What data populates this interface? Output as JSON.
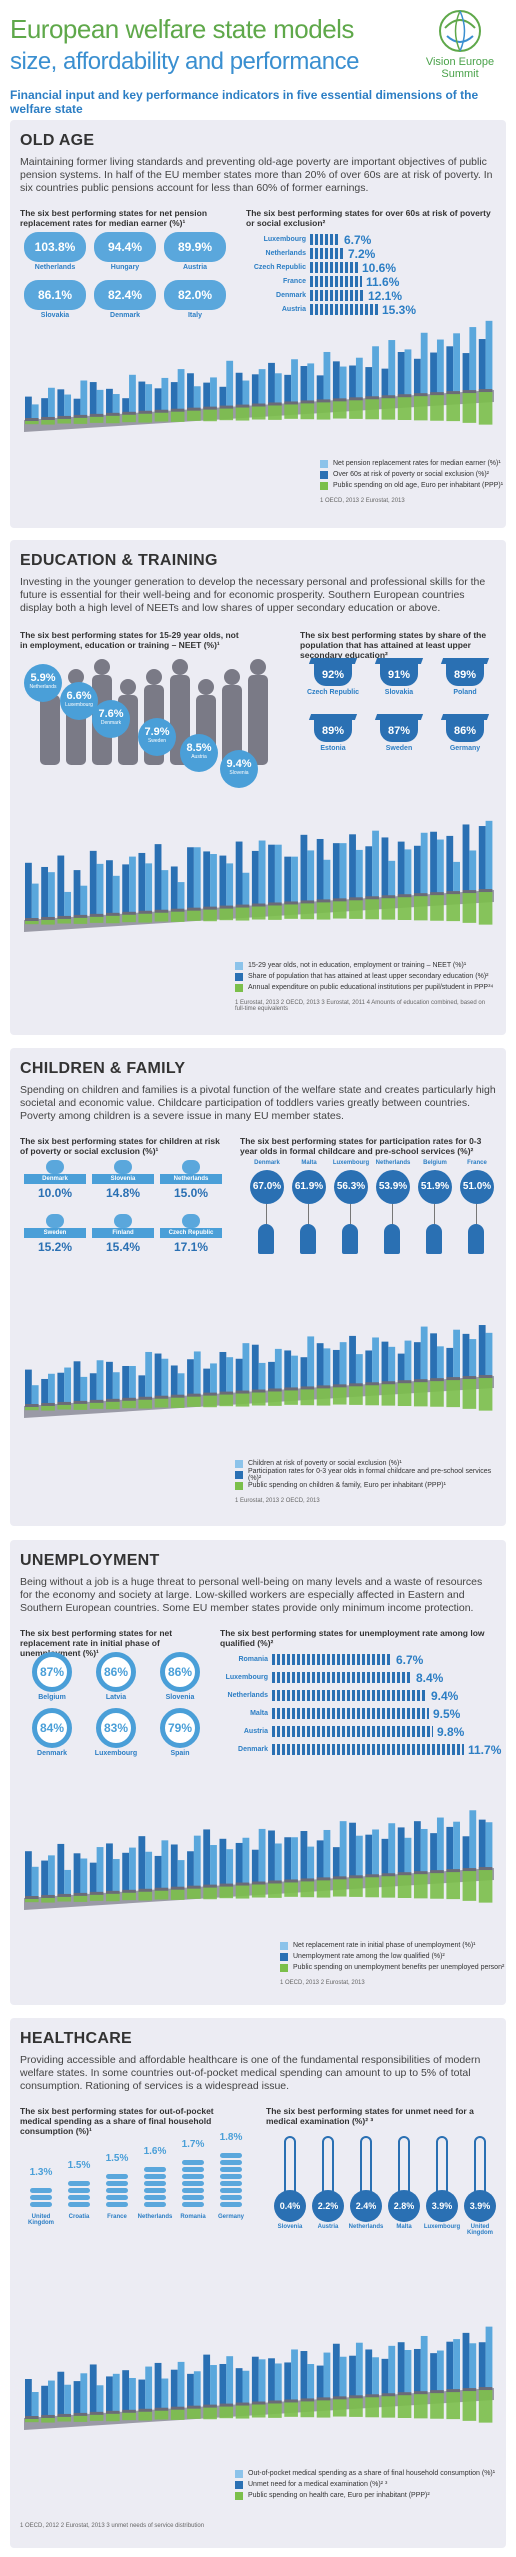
{
  "header": {
    "title": "European welfare state models",
    "subtitle": "size, affordability and performance",
    "brand": "Vision Europe Summit",
    "strap": "Financial input and key performance indicators in five essential dimensions of the welfare state"
  },
  "colors": {
    "dark_blue": "#2a70b3",
    "mid_blue": "#4a9fd8",
    "light_blue": "#8cc3ea",
    "green": "#7bbf4a",
    "panel": "#ececf3"
  },
  "old_age": {
    "title": "OLD AGE",
    "intro": "Maintaining former living standards and preventing old-age poverty are important objectives of public pension systems. In half of the EU member states more than 20% of over 60s are at risk of poverty. In six countries public pensions account for less than 60% of former earnings.",
    "left_head": "The six best performing states for net pension replacement rates for median earner (%)¹",
    "left_items": [
      {
        "value": "103.8%",
        "country": "Netherlands"
      },
      {
        "value": "94.4%",
        "country": "Hungary"
      },
      {
        "value": "89.9%",
        "country": "Austria"
      },
      {
        "value": "86.1%",
        "country": "Slovakia"
      },
      {
        "value": "82.4%",
        "country": "Denmark"
      },
      {
        "value": "82.0%",
        "country": "Italy"
      }
    ],
    "right_head": "The six best performing states for over 60s at risk of poverty or social exclusion²",
    "right_items": [
      {
        "country": "Luxembourg",
        "value": "6.7%"
      },
      {
        "country": "Netherlands",
        "value": "7.2%"
      },
      {
        "country": "Czech Republic",
        "value": "10.6%"
      },
      {
        "country": "France",
        "value": "11.6%"
      },
      {
        "country": "Denmark",
        "value": "12.1%"
      },
      {
        "country": "Austria",
        "value": "15.3%"
      }
    ],
    "legend": [
      "Net pension replacement rates for median earner (%)¹",
      "Over 60s at risk of poverty or social exclusion (%)²",
      "Public spending on old age, Euro per inhabitant (PPP)¹"
    ],
    "footnote": "1 OECD, 2013    2 Eurostat, 2013"
  },
  "education": {
    "title": "EDUCATION & TRAINING",
    "intro": "Investing in the younger generation to develop the necessary personal and professional skills for the future is essential for their well-being and for economic prosperity. Southern European countries display both a high level of NEETs and low shares of upper secondary education or above.",
    "left_head": "The six best performing states for 15-29 year olds, not in employment, education or training – NEET (%)¹",
    "left_items": [
      {
        "value": "5.9%",
        "country": "Netherlands"
      },
      {
        "value": "6.6%",
        "country": "Luxembourg"
      },
      {
        "value": "7.6%",
        "country": "Denmark"
      },
      {
        "value": "7.9%",
        "country": "Sweden"
      },
      {
        "value": "8.5%",
        "country": "Austria"
      },
      {
        "value": "9.4%",
        "country": "Slovenia"
      }
    ],
    "right_head": "The six best performing states by share of the population that has attained at least upper secondary education²",
    "right_items": [
      {
        "value": "92%",
        "country": "Czech Republic"
      },
      {
        "value": "91%",
        "country": "Slovakia"
      },
      {
        "value": "89%",
        "country": "Poland"
      },
      {
        "value": "89%",
        "country": "Estonia"
      },
      {
        "value": "87%",
        "country": "Sweden"
      },
      {
        "value": "86%",
        "country": "Germany"
      }
    ],
    "legend": [
      "15-29 year olds, not in education, employment or training – NEET (%)¹",
      "Share of population that has attained at least upper secondary education (%)²",
      "Annual expenditure on public educational institutions per pupil/student in PPP³⁴"
    ],
    "footnote": "1 Eurostat, 2013    2 OECD, 2013    3 Eurostat, 2011    4 Amounts of education combined, based on full-time equivalents"
  },
  "children": {
    "title": "CHILDREN & FAMILY",
    "intro": "Spending on children and families is a pivotal function of the welfare state and creates particularly high societal and economic value. Childcare participation of toddlers varies greatly between countries. Poverty among children is a severe issue in many EU member states.",
    "left_head": "The six best performing states for children at risk of poverty or social exclusion (%)¹",
    "left_items": [
      {
        "country": "Denmark",
        "value": "10.0%"
      },
      {
        "country": "Slovenia",
        "value": "14.8%"
      },
      {
        "country": "Netherlands",
        "value": "15.0%"
      },
      {
        "country": "Sweden",
        "value": "15.2%"
      },
      {
        "country": "Finland",
        "value": "15.4%"
      },
      {
        "country": "Czech Republic",
        "value": "17.1%"
      }
    ],
    "right_head": "The six best performing states for participation rates for 0-3 year olds in formal childcare and pre-school services (%)²",
    "right_items": [
      {
        "country": "Denmark",
        "value": "67.0%"
      },
      {
        "country": "Malta",
        "value": "61.9%"
      },
      {
        "country": "Luxembourg",
        "value": "56.3%"
      },
      {
        "country": "Netherlands",
        "value": "53.9%"
      },
      {
        "country": "Belgium",
        "value": "51.9%"
      },
      {
        "country": "France",
        "value": "51.0%"
      }
    ],
    "legend": [
      "Children at risk of poverty or social exclusion (%)¹",
      "Participation rates for 0-3 year olds in formal childcare and pre-school services (%)²",
      "Public spending on children & family, Euro per inhabitant (PPP)¹"
    ],
    "footnote": "1 Eurostat, 2013    2 OECD, 2013"
  },
  "unemployment": {
    "title": "UNEMPLOYMENT",
    "intro": "Being without a job is a huge threat to personal well-being on many levels and a waste of resources for the economy and society at large. Low-skilled workers are especially affected in Eastern and Southern European countries. Some EU member states provide only minimum income protection.",
    "left_head": "The six best performing states for net replacement rate in initial phase of unemployment (%)¹",
    "left_items": [
      {
        "value": "87%",
        "country": "Belgium"
      },
      {
        "value": "86%",
        "country": "Latvia"
      },
      {
        "value": "86%",
        "country": "Slovenia"
      },
      {
        "value": "84%",
        "country": "Denmark"
      },
      {
        "value": "83%",
        "country": "Luxembourg"
      },
      {
        "value": "79%",
        "country": "Spain"
      }
    ],
    "right_head": "The six best performing states for unemployment rate among low qualified (%)²",
    "right_items": [
      {
        "country": "Romania",
        "value": "6.7%"
      },
      {
        "country": "Luxembourg",
        "value": "8.4%"
      },
      {
        "country": "Netherlands",
        "value": "9.4%"
      },
      {
        "country": "Malta",
        "value": "9.5%"
      },
      {
        "country": "Austria",
        "value": "9.8%"
      },
      {
        "country": "Denmark",
        "value": "11.7%"
      }
    ],
    "legend": [
      "Net replacement rate in initial phase of unemployment (%)¹",
      "Unemployment rate among the low qualified (%)²",
      "Public spending on unemployment benefits per unemployed person²"
    ],
    "footnote": "1 OECD, 2013    2 Eurostat, 2013"
  },
  "healthcare": {
    "title": "HEALTHCARE",
    "intro": "Providing accessible and affordable healthcare is one of the fundamental responsibilities of modern welfare states. In some countries out-of-pocket medical spending can amount to up to 5% of total consumption. Rationing of services is a widespread issue.",
    "left_head": "The six best performing states for out-of-pocket medical spending as a share of final household consumption (%)¹",
    "left_items": [
      {
        "value": "1.3%",
        "country": "United Kingdom"
      },
      {
        "value": "1.5%",
        "country": "Croatia"
      },
      {
        "value": "1.5%",
        "country": "France"
      },
      {
        "value": "1.6%",
        "country": "Netherlands"
      },
      {
        "value": "1.7%",
        "country": "Romania"
      },
      {
        "value": "1.8%",
        "country": "Germany"
      }
    ],
    "right_head": "The six best performing states for unmet need for a medical examination (%)² ³",
    "right_items": [
      {
        "value": "0.4%",
        "country": "Slovenia"
      },
      {
        "value": "2.2%",
        "country": "Austria"
      },
      {
        "value": "2.4%",
        "country": "Netherlands"
      },
      {
        "value": "2.8%",
        "country": "Malta"
      },
      {
        "value": "3.9%",
        "country": "Luxembourg"
      },
      {
        "value": "3.9%",
        "country": "United Kingdom"
      }
    ],
    "legend": [
      "Out-of-pocket medical spending as a share of final household consumption (%)¹",
      "Unmet need for a medical examination (%)² ³",
      "Public spending on health care, Euro per inhabitant (PPP)²"
    ],
    "footnote": "1 OECD, 2012    2 Eurostat, 2013    3 unmet needs of service distribution"
  },
  "chart_data": [
    {
      "type": "bar",
      "section": "old_age",
      "values_a": [
        6,
        12,
        9,
        14,
        10,
        8,
        15,
        11,
        13,
        16,
        9,
        12,
        18,
        10,
        14,
        12,
        17,
        15,
        19,
        13,
        16,
        20,
        22,
        18,
        24,
        21,
        23,
        25,
        27
      ],
      "values_b": [
        9,
        8,
        11,
        7,
        13,
        10,
        6,
        12,
        9,
        11,
        14,
        10,
        8,
        13,
        12,
        16,
        11,
        14,
        10,
        15,
        13,
        12,
        11,
        17,
        14,
        16,
        18,
        15,
        20
      ],
      "values_c": [
        3,
        4,
        4,
        5,
        5,
        6,
        6,
        7,
        7,
        8,
        8,
        9,
        9,
        10,
        10,
        11,
        11,
        12,
        13,
        13,
        14,
        15,
        16,
        17,
        18,
        19,
        20,
        22,
        24
      ]
    },
    {
      "type": "bar",
      "section": "education",
      "values_a": [
        14,
        18,
        10,
        12,
        20,
        15,
        22,
        19,
        16,
        11,
        24,
        21,
        17,
        13,
        25,
        23,
        18,
        20,
        16,
        22,
        19,
        26,
        14,
        18,
        24,
        21,
        12,
        16,
        27
      ],
      "values_b": [
        22,
        20,
        24,
        18,
        25,
        21,
        19,
        23,
        26,
        17,
        24,
        22,
        20,
        25,
        21,
        23,
        18,
        26,
        24,
        22,
        25,
        20,
        23,
        21,
        19,
        24,
        22,
        26,
        25
      ],
      "values_c": [
        3,
        4,
        4,
        5,
        5,
        6,
        6,
        7,
        7,
        8,
        8,
        9,
        9,
        10,
        10,
        11,
        11,
        12,
        13,
        13,
        14,
        15,
        16,
        17,
        18,
        19,
        20,
        22,
        24
      ]
    },
    {
      "type": "bar",
      "section": "children",
      "values_a": [
        8,
        12,
        14,
        10,
        16,
        11,
        13,
        18,
        15,
        9,
        17,
        12,
        14,
        19,
        11,
        16,
        13,
        20,
        15,
        17,
        12,
        18,
        14,
        16,
        21,
        13,
        19,
        15,
        17
      ],
      "values_b": [
        14,
        10,
        12,
        16,
        11,
        15,
        13,
        9,
        17,
        12,
        14,
        10,
        16,
        13,
        18,
        11,
        15,
        12,
        17,
        14,
        19,
        13,
        16,
        11,
        15,
        18,
        12,
        17,
        20
      ],
      "values_c": [
        3,
        4,
        4,
        5,
        5,
        6,
        6,
        7,
        7,
        8,
        8,
        9,
        9,
        10,
        10,
        11,
        11,
        12,
        13,
        13,
        14,
        15,
        16,
        17,
        18,
        19,
        20,
        22,
        24
      ]
    },
    {
      "type": "bar",
      "section": "unemployment",
      "values_a": [
        12,
        16,
        10,
        14,
        18,
        13,
        17,
        15,
        19,
        11,
        20,
        16,
        14,
        18,
        21,
        15,
        17,
        13,
        19,
        22,
        16,
        18,
        20,
        14,
        17,
        21,
        19,
        23,
        18
      ],
      "values_b": [
        18,
        14,
        20,
        16,
        12,
        19,
        15,
        21,
        13,
        17,
        14,
        22,
        18,
        16,
        13,
        20,
        17,
        19,
        15,
        12,
        21,
        16,
        14,
        18,
        20,
        15,
        17,
        13,
        19
      ],
      "values_c": [
        3,
        4,
        4,
        5,
        5,
        6,
        6,
        7,
        7,
        8,
        8,
        9,
        9,
        10,
        10,
        11,
        11,
        12,
        13,
        13,
        14,
        15,
        16,
        17,
        18,
        19,
        20,
        22,
        24
      ]
    },
    {
      "type": "bar",
      "section": "healthcare",
      "values_a": [
        10,
        14,
        12,
        16,
        11,
        15,
        13,
        17,
        12,
        18,
        14,
        16,
        19,
        13,
        17,
        15,
        20,
        14,
        18,
        16,
        21,
        15,
        19,
        17,
        22,
        16,
        20,
        18,
        24
      ],
      "values_b": [
        15,
        12,
        17,
        13,
        19,
        14,
        16,
        12,
        18,
        15,
        13,
        20,
        16,
        14,
        18,
        17,
        15,
        19,
        13,
        21,
        16,
        18,
        14,
        20,
        17,
        15,
        19,
        22,
        18
      ],
      "values_c": [
        3,
        4,
        4,
        5,
        5,
        6,
        6,
        7,
        7,
        8,
        8,
        9,
        9,
        10,
        10,
        11,
        11,
        12,
        13,
        13,
        14,
        15,
        16,
        17,
        18,
        19,
        20,
        22,
        24
      ]
    }
  ]
}
